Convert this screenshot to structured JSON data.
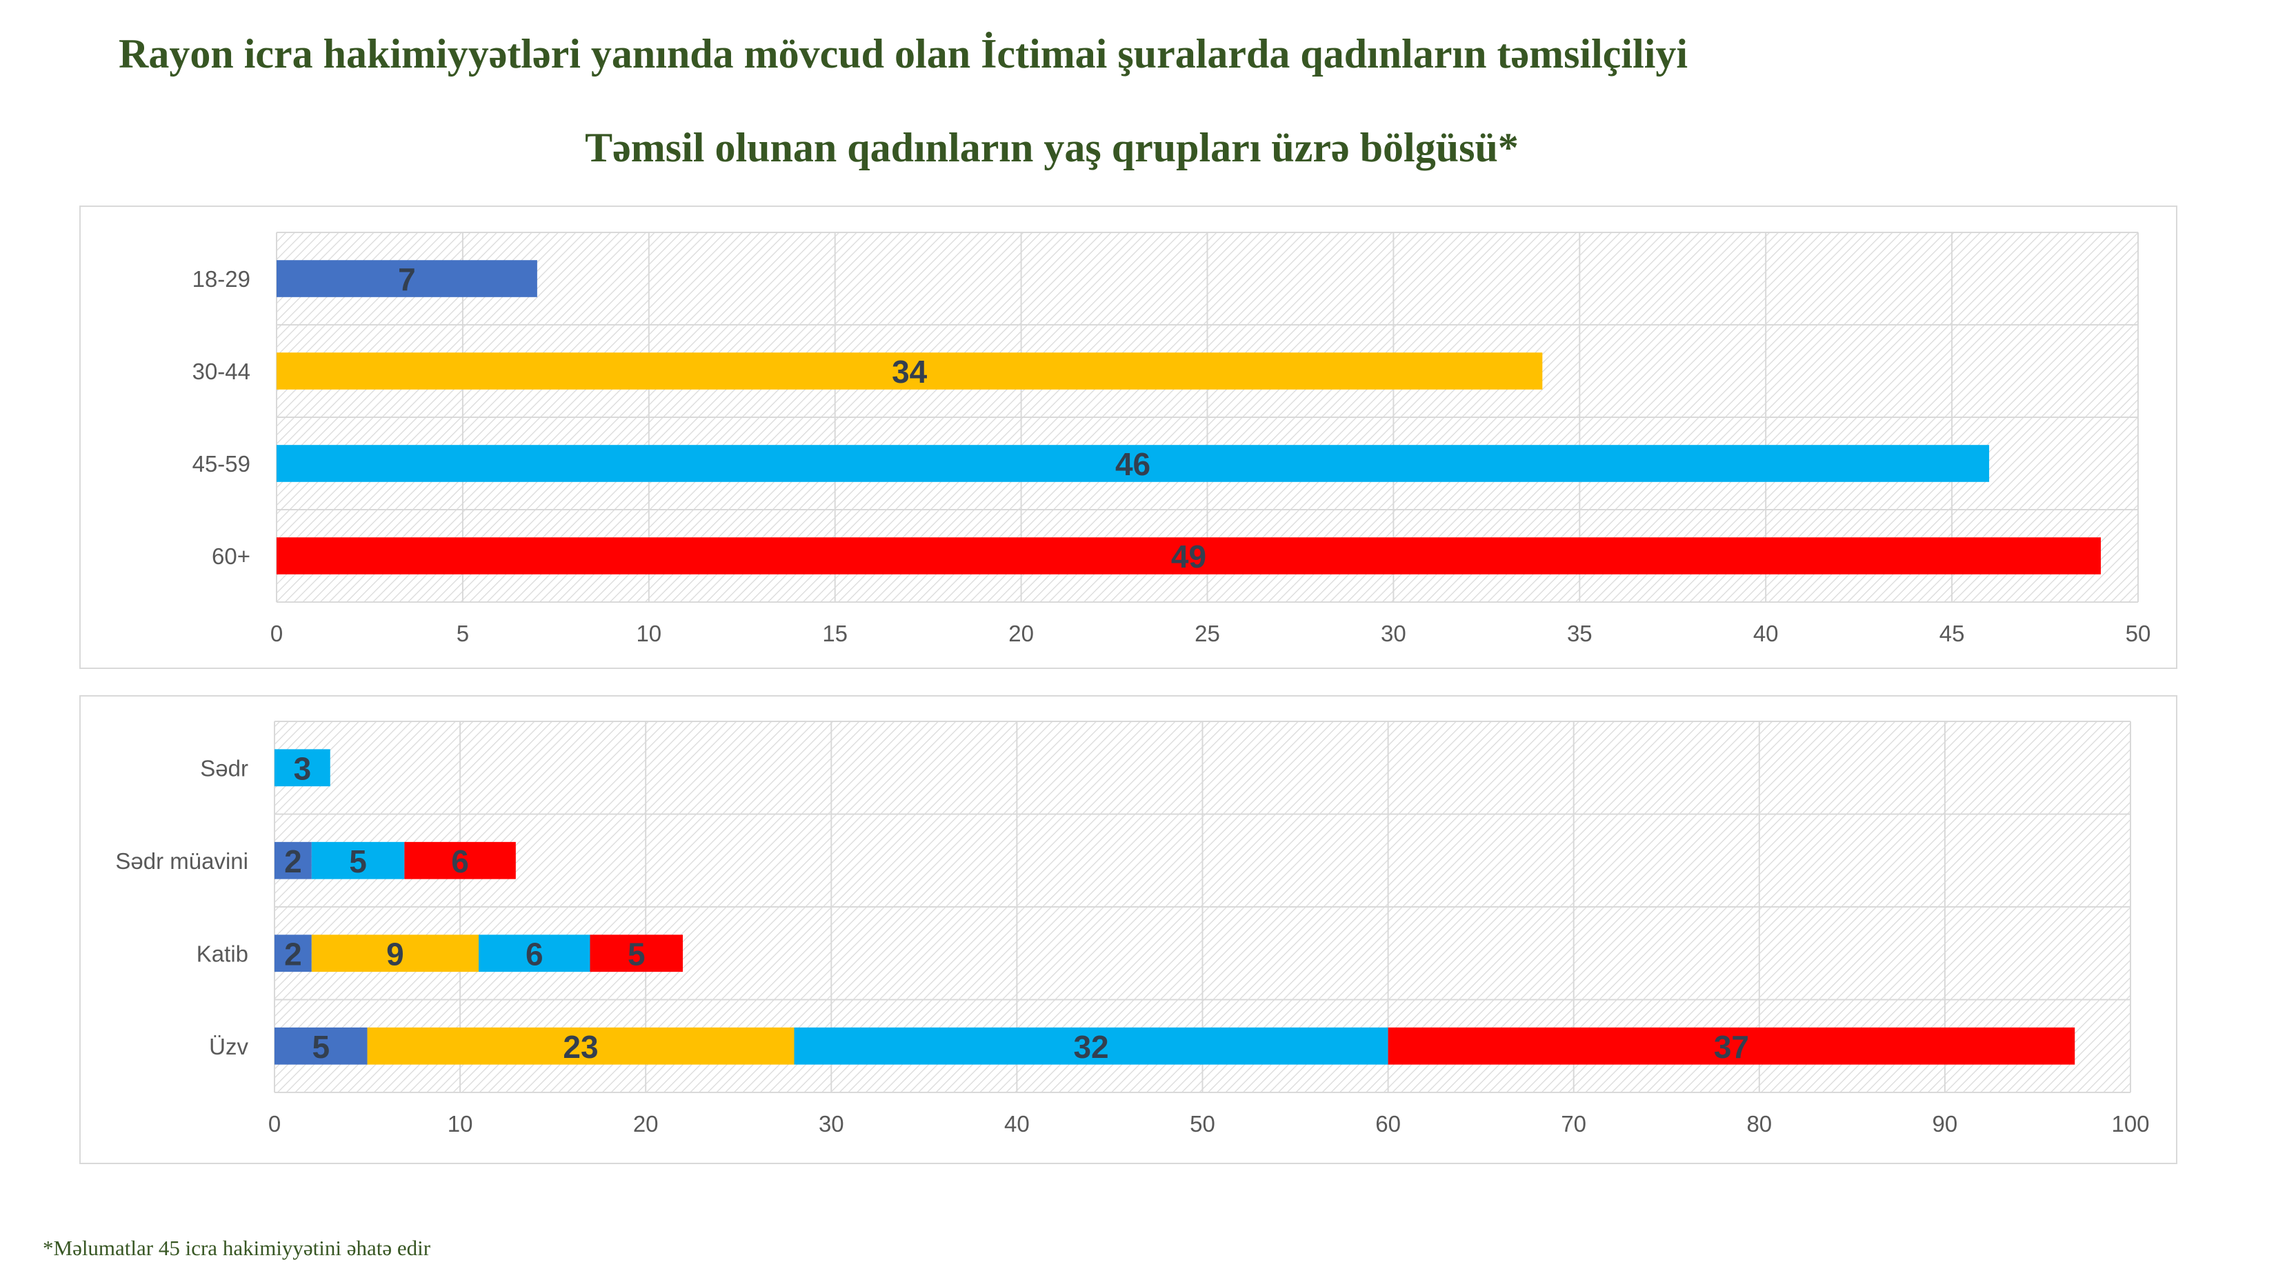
{
  "title": "Rayon icra hakimiyyətləri yanında mövcud olan İctimai şuralarda qadınların təmsilçiliyi",
  "subtitle": "Təmsil olunan qadınların yaş qrupları üzrə bölgüsü*",
  "footnote": "*Məlumatlar 45 icra hakimiyyətini əhatə edir",
  "colors": {
    "18-29": "#4472c4",
    "30-44": "#ffc000",
    "45-59": "#00b0f0",
    "60+": "#ff0000",
    "label": "#333f4f",
    "title": "#375623"
  },
  "chart_data": [
    {
      "type": "bar",
      "orientation": "horizontal",
      "categories": [
        "18-29",
        "30-44",
        "45-59",
        "60+"
      ],
      "values": [
        7,
        34,
        46,
        49
      ],
      "bar_colors": [
        "#4472c4",
        "#ffc000",
        "#00b0f0",
        "#ff0000"
      ],
      "xlim": [
        0,
        50
      ],
      "xticks": [
        0,
        5,
        10,
        15,
        20,
        25,
        30,
        35,
        40,
        45,
        50
      ],
      "grid": true,
      "data_labels": true
    },
    {
      "type": "bar",
      "orientation": "horizontal",
      "stacked": true,
      "categories": [
        "Sədr",
        "Sədr müavini",
        "Katib",
        "Üzv"
      ],
      "series": [
        {
          "values": [
            0,
            2,
            2,
            5
          ],
          "color": "#4472c4"
        },
        {
          "values": [
            0,
            0,
            9,
            23
          ],
          "color": "#ffc000"
        },
        {
          "values": [
            3,
            5,
            6,
            32
          ],
          "color": "#00b0f0"
        },
        {
          "values": [
            0,
            6,
            5,
            37
          ],
          "color": "#ff0000"
        }
      ],
      "xlim": [
        0,
        100
      ],
      "xticks": [
        0,
        10,
        20,
        30,
        40,
        50,
        60,
        70,
        80,
        90,
        100
      ],
      "grid": true,
      "data_labels": true
    }
  ]
}
